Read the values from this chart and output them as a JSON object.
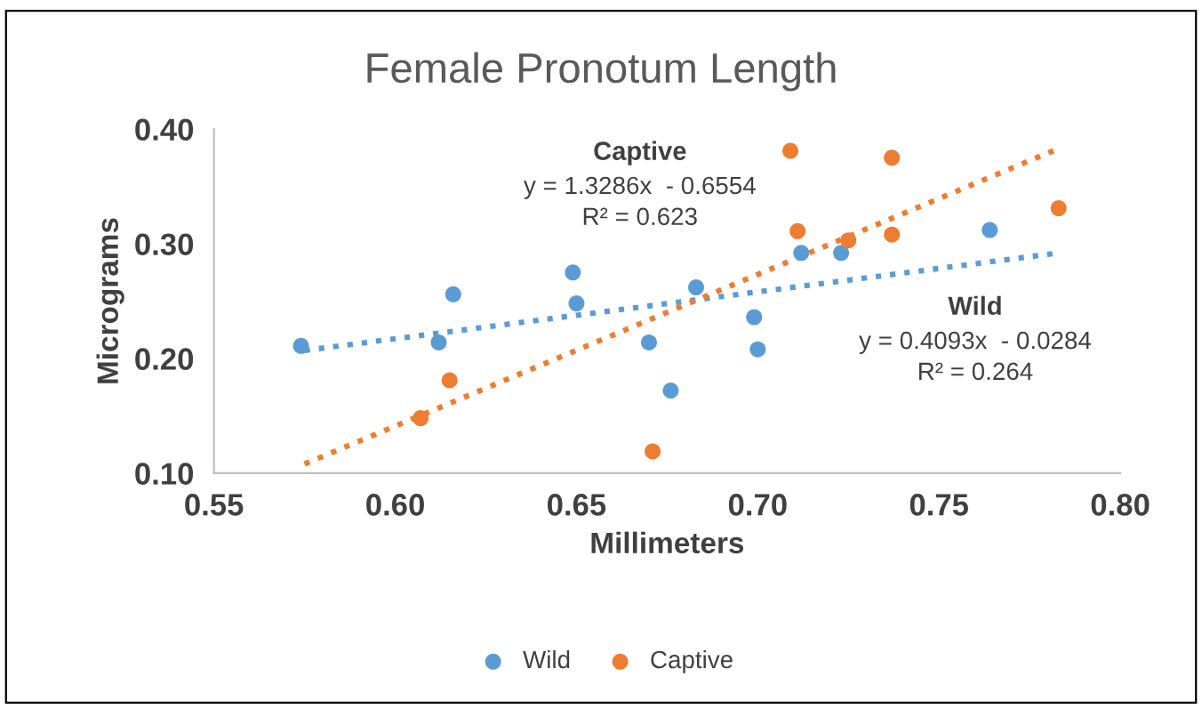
{
  "chart_data": {
    "type": "scatter",
    "title": "Female Pronotum Length",
    "xlabel": "Millimeters",
    "ylabel": "Micrograms",
    "xlim": [
      0.55,
      0.8
    ],
    "xticks": [
      {
        "value": 0.55,
        "label": "0.55"
      },
      {
        "value": 0.6,
        "label": "0.60"
      },
      {
        "value": 0.65,
        "label": "0.65"
      },
      {
        "value": 0.7,
        "label": "0.70"
      },
      {
        "value": 0.75,
        "label": "0.75"
      },
      {
        "value": 0.8,
        "label": "0.80"
      }
    ],
    "ylim": [
      0.1,
      0.4
    ],
    "yticks": [
      {
        "value": 0.1,
        "label": "0.10"
      },
      {
        "value": 0.2,
        "label": "0.20"
      },
      {
        "value": 0.3,
        "label": "0.30"
      },
      {
        "value": 0.4,
        "label": "0.40"
      }
    ],
    "grid": false,
    "legend": "bottom",
    "marker": "circle",
    "series": [
      {
        "name": "Wild",
        "color": "#5b9bd5",
        "x": [
          0.574,
          0.612,
          0.616,
          0.649,
          0.65,
          0.67,
          0.676,
          0.683,
          0.699,
          0.7,
          0.712,
          0.723,
          0.764
        ],
        "values": [
          0.211,
          0.214,
          0.256,
          0.275,
          0.248,
          0.214,
          0.172,
          0.262,
          0.236,
          0.208,
          0.292,
          0.292,
          0.312
        ]
      },
      {
        "name": "Captive",
        "color": "#ed7d31",
        "x": [
          0.607,
          0.615,
          0.671,
          0.709,
          0.711,
          0.725,
          0.737,
          0.737,
          0.783
        ],
        "values": [
          0.148,
          0.181,
          0.119,
          0.381,
          0.311,
          0.303,
          0.375,
          0.308,
          0.331
        ]
      },
      {
        "type": "line",
        "color": "#5b9bd5",
        "line_style": "dotted",
        "marker": "none",
        "x": [
          0.575,
          0.783
        ],
        "values": [
          0.207,
          0.292
        ]
      },
      {
        "type": "line",
        "color": "#ed7d31",
        "line_style": "dotted",
        "marker": "none",
        "x": [
          0.575,
          0.783
        ],
        "values": [
          0.108,
          0.383
        ]
      }
    ],
    "annotations": [
      "Captive",
      "y = 1.3286x  - 0.6554",
      "R² = 0.623",
      "Wild",
      "y = 0.4093x  - 0.0284",
      "R² = 0.264"
    ]
  }
}
